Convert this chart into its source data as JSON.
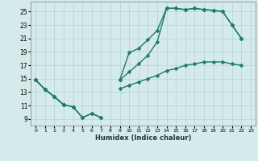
{
  "xlabel": "Humidex (Indice chaleur)",
  "background_color": "#d5eaea",
  "grid_color": "#b8d8d8",
  "line_color": "#1e7a6a",
  "xlim": [
    -0.5,
    23.5
  ],
  "ylim": [
    8.0,
    26.5
  ],
  "xticks": [
    0,
    1,
    2,
    3,
    4,
    5,
    6,
    7,
    8,
    9,
    10,
    11,
    12,
    13,
    14,
    15,
    16,
    17,
    18,
    19,
    20,
    21,
    22,
    23
  ],
  "yticks": [
    9,
    11,
    13,
    15,
    17,
    19,
    21,
    23,
    25
  ],
  "line1_x": [
    0,
    1,
    2,
    3,
    4,
    5,
    6,
    7,
    8,
    9,
    10,
    11,
    12,
    13,
    14,
    15,
    16,
    17,
    18,
    19,
    20,
    21,
    22,
    23
  ],
  "line1_y": [
    14.8,
    13.4,
    12.3,
    11.1,
    10.8,
    9.2,
    9.8,
    9.2,
    null,
    14.8,
    18.9,
    19.5,
    20.8,
    22.2,
    25.5,
    25.5,
    25.3,
    25.5,
    25.3,
    25.2,
    25.0,
    23.0,
    21.0,
    null
  ],
  "line2_x": [
    0,
    1,
    2,
    3,
    4,
    5,
    6,
    7,
    8,
    9,
    10,
    11,
    12,
    13,
    14,
    15,
    16,
    17,
    18,
    19,
    20,
    21,
    22,
    23
  ],
  "line2_y": [
    14.8,
    13.4,
    12.3,
    11.1,
    null,
    null,
    null,
    null,
    null,
    14.8,
    16.0,
    17.2,
    18.5,
    20.5,
    25.5,
    25.5,
    25.3,
    25.5,
    25.3,
    25.2,
    25.0,
    23.0,
    21.0,
    null
  ],
  "line3_x": [
    0,
    1,
    2,
    3,
    4,
    5,
    6,
    7,
    8,
    9,
    10,
    11,
    12,
    13,
    14,
    15,
    16,
    17,
    18,
    19,
    20,
    21,
    22,
    23
  ],
  "line3_y": [
    14.8,
    13.4,
    12.3,
    11.1,
    10.8,
    9.2,
    9.8,
    9.2,
    null,
    13.5,
    14.0,
    14.5,
    15.0,
    15.5,
    16.2,
    16.5,
    17.0,
    17.2,
    17.5,
    17.5,
    17.5,
    17.2,
    17.0,
    null
  ],
  "marker_size": 2.5,
  "line_width": 1.0
}
